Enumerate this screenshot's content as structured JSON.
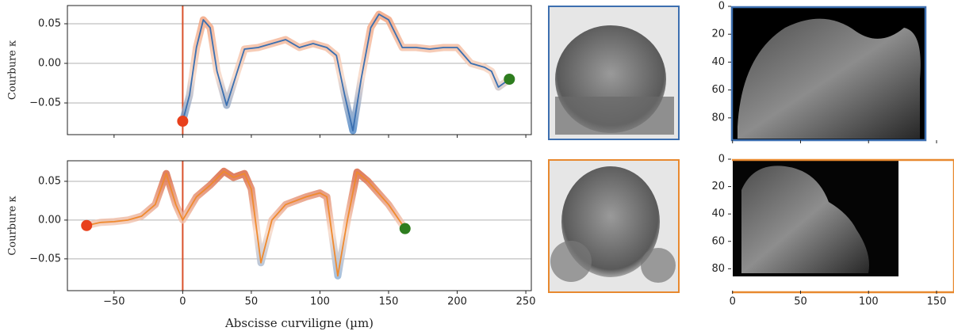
{
  "chart_data": [
    {
      "type": "line",
      "ylabel": "Courbure κ",
      "xlim": [
        -84,
        254
      ],
      "ylim": [
        -0.09,
        0.073
      ],
      "xticks": [
        -50,
        0,
        50,
        100,
        150,
        200,
        250
      ],
      "xtick_labels": false,
      "yticks": [
        {
          "value": -0.05,
          "label": "−0.05"
        },
        {
          "value": 0,
          "label": "0.00"
        },
        0.05
      ],
      "grid": true,
      "vline": 0,
      "vline_color": "#d9512c",
      "series": [
        {
          "color": "#3a6fb0",
          "band_top": "#f2a07a",
          "band_bottom": "#4a84c4",
          "start_color": "#e8401c",
          "end_color": "#2e7d1f",
          "x": [
            0,
            5,
            10,
            15,
            20,
            25,
            32,
            38,
            45,
            55,
            65,
            75,
            85,
            95,
            105,
            112,
            118,
            124,
            130,
            137,
            143,
            150,
            160,
            170,
            180,
            190,
            200,
            210,
            220,
            225,
            230,
            238
          ],
          "values": [
            -0.073,
            -0.04,
            0.02,
            0.055,
            0.045,
            -0.01,
            -0.053,
            -0.02,
            0.018,
            0.02,
            0.025,
            0.03,
            0.02,
            0.025,
            0.02,
            0.01,
            -0.04,
            -0.085,
            -0.02,
            0.045,
            0.062,
            0.055,
            0.02,
            0.02,
            0.018,
            0.02,
            0.02,
            0.0,
            -0.005,
            -0.01,
            -0.03,
            -0.02
          ]
        }
      ]
    },
    {
      "type": "line",
      "ylabel": "Courbure κ",
      "xlabel": "Abscisse curviligne (µm)",
      "xlim": [
        -84,
        254
      ],
      "ylim": [
        -0.091,
        0.0765
      ],
      "xticks": [
        {
          "value": -50,
          "label": "−50"
        },
        0,
        50,
        100,
        150,
        200,
        250
      ],
      "xtick_labels": true,
      "yticks": [
        {
          "value": -0.05,
          "label": "−0.05"
        },
        {
          "value": 0,
          "label": "0.00"
        },
        0.05
      ],
      "grid": true,
      "vline": 0,
      "vline_color": "#d9512c",
      "series": [
        {
          "color": "#ef8a2e",
          "band_top": "#d8603a",
          "band_bottom": "#7faad6",
          "start_color": "#e8401c",
          "end_color": "#2e7d1f",
          "x": [
            -70,
            -60,
            -50,
            -40,
            -30,
            -20,
            -12,
            -5,
            0,
            10,
            20,
            30,
            37,
            45,
            50,
            57,
            65,
            75,
            90,
            100,
            105,
            113,
            120,
            127,
            135,
            150,
            162
          ],
          "values": [
            -0.007,
            -0.003,
            -0.002,
            0.0,
            0.005,
            0.02,
            0.06,
            0.02,
            0.0,
            0.03,
            0.045,
            0.063,
            0.055,
            0.06,
            0.04,
            -0.055,
            0.0,
            0.02,
            0.03,
            0.035,
            0.03,
            -0.072,
            0.0,
            0.062,
            0.05,
            0.02,
            -0.011
          ]
        }
      ]
    },
    {
      "type": "image",
      "xlim": [
        -1,
        157
      ],
      "ylim": [
        96,
        0
      ],
      "xticks": [
        0,
        50,
        100,
        150
      ],
      "xtick_labels": false,
      "yticks": [
        0,
        20,
        40,
        60,
        80
      ]
    },
    {
      "type": "image",
      "xlim": [
        -1,
        157
      ],
      "ylim": [
        96,
        0
      ],
      "xticks": [
        0,
        50,
        100,
        150
      ],
      "xtick_labels": true,
      "yticks": [
        0,
        20,
        40,
        60,
        80
      ]
    }
  ]
}
